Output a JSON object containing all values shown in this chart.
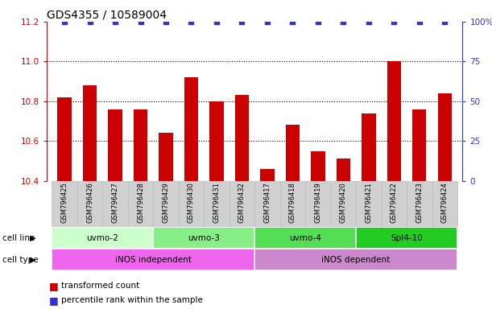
{
  "title": "GDS4355 / 10589004",
  "samples": [
    "GSM796425",
    "GSM796426",
    "GSM796427",
    "GSM796428",
    "GSM796429",
    "GSM796430",
    "GSM796431",
    "GSM796432",
    "GSM796417",
    "GSM796418",
    "GSM796419",
    "GSM796420",
    "GSM796421",
    "GSM796422",
    "GSM796423",
    "GSM796424"
  ],
  "bar_values": [
    10.82,
    10.88,
    10.76,
    10.76,
    10.64,
    10.92,
    10.8,
    10.83,
    10.46,
    10.68,
    10.55,
    10.51,
    10.74,
    11.0,
    10.76,
    10.84
  ],
  "percentile_values": [
    100,
    100,
    100,
    100,
    100,
    100,
    100,
    100,
    100,
    100,
    100,
    100,
    100,
    100,
    100,
    100
  ],
  "ylim_left": [
    10.4,
    11.2
  ],
  "yticks_left": [
    10.4,
    10.6,
    10.8,
    11.0,
    11.2
  ],
  "ylim_right": [
    0,
    100
  ],
  "yticks_right": [
    0,
    25,
    50,
    75,
    100
  ],
  "bar_color": "#cc0000",
  "dot_color": "#3333cc",
  "grid_color": "#000000",
  "cell_lines": [
    {
      "label": "uvmo-2",
      "start": 0,
      "end": 4,
      "color": "#ccffcc"
    },
    {
      "label": "uvmo-3",
      "start": 4,
      "end": 8,
      "color": "#88ee88"
    },
    {
      "label": "uvmo-4",
      "start": 8,
      "end": 12,
      "color": "#55dd55"
    },
    {
      "label": "Spl4-10",
      "start": 12,
      "end": 16,
      "color": "#22cc22"
    }
  ],
  "cell_types": [
    {
      "label": "iNOS independent",
      "start": 0,
      "end": 8,
      "color": "#ee66ee"
    },
    {
      "label": "iNOS dependent",
      "start": 8,
      "end": 16,
      "color": "#cc88cc"
    }
  ],
  "legend_red_label": "transformed count",
  "legend_blue_label": "percentile rank within the sample",
  "cell_line_label": "cell line",
  "cell_type_label": "cell type",
  "right_axis_label_color": "#3333cc",
  "left_axis_label_color": "#cc0000",
  "title_fontsize": 10,
  "tick_fontsize": 7.5,
  "bar_width": 0.55,
  "dot_size": 4,
  "background_color": "#ffffff"
}
